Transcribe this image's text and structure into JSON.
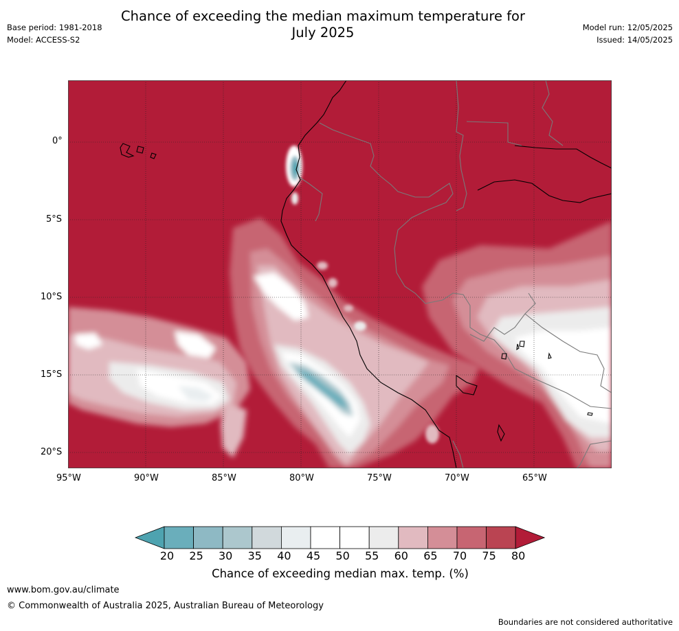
{
  "header": {
    "title_line1": "Chance of exceeding the median maximum temperature for",
    "title_line2": "July 2025",
    "base_period": "Base period: 1981-2018",
    "model": "Model: ACCESS-S2",
    "model_run": "Model run: 12/05/2025",
    "issued": "Issued: 14/05/2025"
  },
  "map": {
    "lon_labels": [
      "95°W",
      "90°W",
      "85°W",
      "80°W",
      "75°W",
      "70°W",
      "65°W"
    ],
    "lat_labels": [
      "0°",
      "5°S",
      "10°S",
      "15°S",
      "20°S"
    ],
    "lon_range": [
      -95,
      -60
    ],
    "lat_range": [
      -21,
      4
    ],
    "background_category": "75-80+ (dark red)"
  },
  "colorbar": {
    "ticks": [
      "20",
      "25",
      "30",
      "35",
      "40",
      "45",
      "50",
      "55",
      "60",
      "65",
      "70",
      "75",
      "80"
    ],
    "colors": [
      "#4ea3b0",
      "#6aaebb",
      "#8eb9c4",
      "#acc7cd",
      "#d1d9dc",
      "#e9eef0",
      "#ffffff",
      "#ffffff",
      "#ececec",
      "#e1bac0",
      "#d48e97",
      "#c76572",
      "#ba4452",
      "#b21c38"
    ],
    "label": "Chance of exceeding median max. temp. (%)"
  },
  "footer": {
    "website": "www.bom.gov.au/climate",
    "copyright": "© Commonwealth of Australia 2025, Australian Bureau of Meteorology",
    "disclaimer": "Boundaries are not considered authoritative"
  }
}
